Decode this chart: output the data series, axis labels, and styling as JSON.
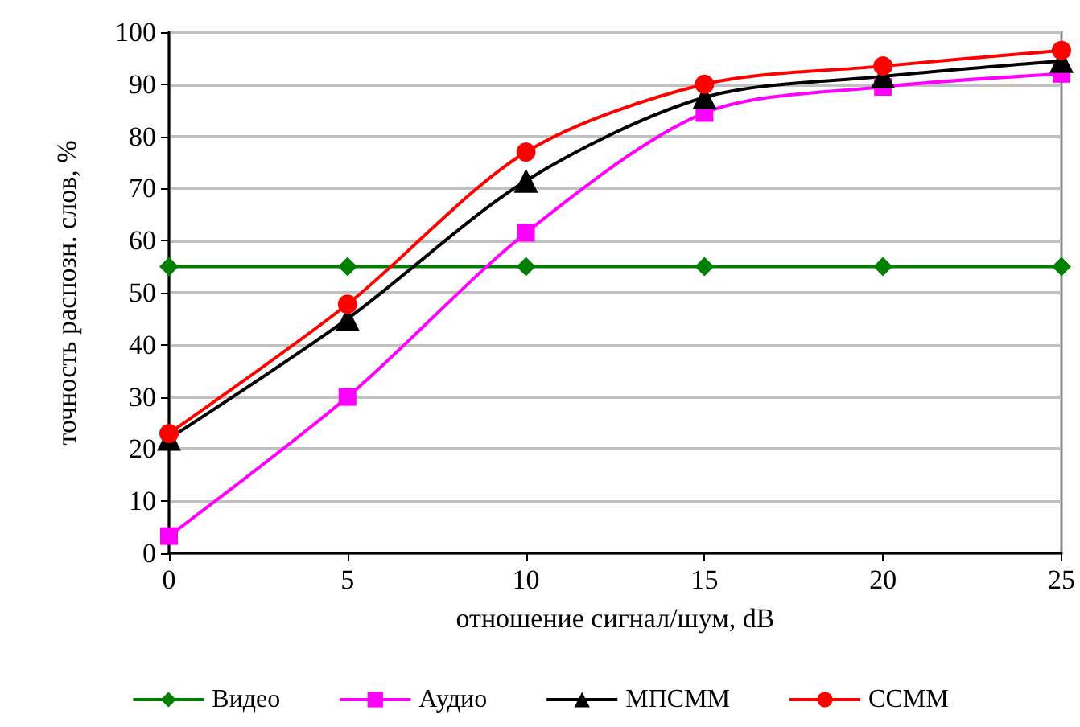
{
  "chart_data": {
    "type": "line",
    "xlabel": "отношение сигнал/шум, dB",
    "ylabel": "точность распозн. слов, %",
    "x": [
      0,
      5,
      10,
      15,
      20,
      25
    ],
    "series": [
      {
        "name": "Видео",
        "color": "#008000",
        "marker": "diamond",
        "values": [
          55,
          55,
          55,
          55,
          55,
          55
        ]
      },
      {
        "name": "Аудио",
        "color": "#ff00ff",
        "marker": "square",
        "values": [
          3.3,
          30,
          61.5,
          84.5,
          89.5,
          92
        ]
      },
      {
        "name": "МПСММ",
        "color": "#000000",
        "marker": "triangle",
        "values": [
          22,
          45,
          71.5,
          87.5,
          91.5,
          94.5
        ]
      },
      {
        "name": "ССММ",
        "color": "#ff0000",
        "marker": "circle",
        "values": [
          23,
          47.8,
          77,
          90,
          93.5,
          96.5
        ]
      }
    ],
    "xlim": [
      0,
      25
    ],
    "xticks": [
      0,
      5,
      10,
      15,
      20,
      25
    ],
    "ylim": [
      0,
      100
    ],
    "yticks": [
      0,
      10,
      20,
      30,
      40,
      50,
      60,
      70,
      80,
      90,
      100
    ],
    "grid": "y",
    "legend": "bottom"
  }
}
